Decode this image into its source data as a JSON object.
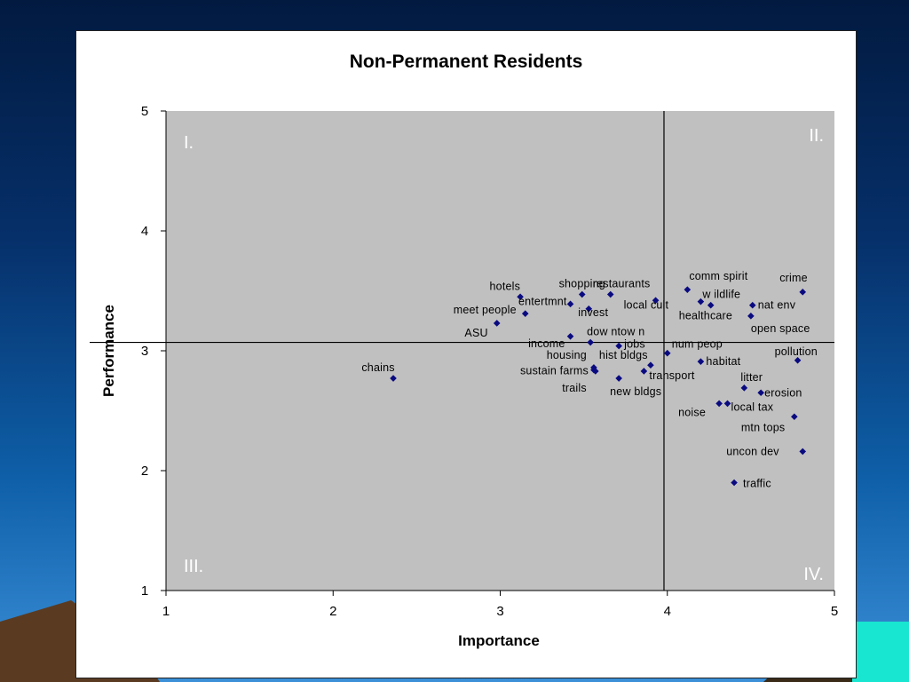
{
  "chart_data": {
    "type": "scatter",
    "title": "Non-Permanent Residents",
    "xlabel": "Importance",
    "ylabel": "Performance",
    "xlim": [
      1,
      5
    ],
    "ylim": [
      1,
      5
    ],
    "xticks": [
      "1",
      "2",
      "3",
      "4",
      "5"
    ],
    "yticks": [
      "1",
      "2",
      "3",
      "4",
      "5"
    ],
    "grid": false,
    "marker_color": "#0a0a80",
    "plot_background": "#c0c0c0",
    "reference_lines": {
      "x": 3.98,
      "y": 3.07
    },
    "quadrants": [
      "I.",
      "II.",
      "III.",
      "IV."
    ],
    "points": [
      {
        "label": "chains",
        "x": 2.36,
        "y": 2.77
      },
      {
        "label": "ASU",
        "x": 2.98,
        "y": 3.23
      },
      {
        "label": "hotels",
        "x": 3.12,
        "y": 3.45
      },
      {
        "label": "meet people",
        "x": 3.15,
        "y": 3.31
      },
      {
        "label": "entertmnt",
        "x": 3.42,
        "y": 3.39
      },
      {
        "label": "income",
        "x": 3.42,
        "y": 3.12
      },
      {
        "label": "shopping",
        "x": 3.49,
        "y": 3.47
      },
      {
        "label": "invest",
        "x": 3.53,
        "y": 3.35
      },
      {
        "label": "dow ntow n",
        "x": 3.54,
        "y": 3.07
      },
      {
        "label": "housing",
        "x": 3.56,
        "y": 2.86
      },
      {
        "label": "sustain farms",
        "x": 3.56,
        "y": 2.84
      },
      {
        "label": "trails",
        "x": 3.57,
        "y": 2.83
      },
      {
        "label": "restaurants",
        "x": 3.66,
        "y": 3.47
      },
      {
        "label": "jobs",
        "x": 3.71,
        "y": 3.04
      },
      {
        "label": "new bldgs",
        "x": 3.71,
        "y": 2.77
      },
      {
        "label": "transport",
        "x": 3.86,
        "y": 2.83
      },
      {
        "label": "hist bldgs",
        "x": 3.9,
        "y": 2.88
      },
      {
        "label": "local cult",
        "x": 3.93,
        "y": 3.42
      },
      {
        "label": "num peop",
        "x": 4.0,
        "y": 2.98
      },
      {
        "label": "comm spirit",
        "x": 4.12,
        "y": 3.51
      },
      {
        "label": "w ildlife",
        "x": 4.2,
        "y": 3.41
      },
      {
        "label": "habitat",
        "x": 4.2,
        "y": 2.91
      },
      {
        "label": "healthcare",
        "x": 4.26,
        "y": 3.38
      },
      {
        "label": "noise",
        "x": 4.31,
        "y": 2.56
      },
      {
        "label": "local tax",
        "x": 4.36,
        "y": 2.56
      },
      {
        "label": "traffic",
        "x": 4.4,
        "y": 1.9
      },
      {
        "label": "litter",
        "x": 4.46,
        "y": 2.69
      },
      {
        "label": "open space",
        "x": 4.5,
        "y": 3.29
      },
      {
        "label": "nat env",
        "x": 4.51,
        "y": 3.38
      },
      {
        "label": "erosion",
        "x": 4.56,
        "y": 2.65
      },
      {
        "label": "mtn tops",
        "x": 4.76,
        "y": 2.45
      },
      {
        "label": "pollution",
        "x": 4.78,
        "y": 2.92
      },
      {
        "label": "crime",
        "x": 4.81,
        "y": 3.49
      },
      {
        "label": "uncon dev",
        "x": 4.81,
        "y": 2.16
      }
    ]
  }
}
